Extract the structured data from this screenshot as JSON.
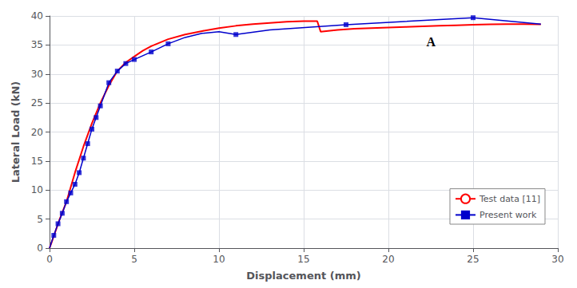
{
  "chart_data": {
    "type": "line",
    "xlabel": "Displacement (mm)",
    "ylabel": "Lateral Load (kN)",
    "xlim": [
      0,
      30
    ],
    "ylim": [
      0,
      40
    ],
    "xticks": [
      0,
      5,
      10,
      15,
      20,
      25,
      30
    ],
    "yticks": [
      0,
      5,
      10,
      15,
      20,
      25,
      30,
      35,
      40
    ],
    "grid": true,
    "legend": "lower right",
    "annotations": [
      {
        "text": "A",
        "x": 22.0,
        "y": 35.5
      }
    ],
    "series": [
      {
        "name": "Test data [11]",
        "color": "#ff0000",
        "x": [
          0.0,
          0.1,
          0.3,
          0.6,
          1.0,
          1.5,
          2.0,
          2.5,
          3.0,
          3.5,
          4.0,
          4.5,
          5.0,
          5.5,
          6.0,
          7.0,
          8.0,
          9.0,
          10.0,
          11.0,
          12.0,
          13.0,
          14.0,
          15.0,
          15.2,
          15.8,
          16.0,
          17.0,
          18.0,
          19.0,
          20.0,
          21.0,
          22.0,
          23.0,
          24.0,
          25.0,
          26.0,
          27.0,
          28.0,
          29.0
        ],
        "values": [
          0.0,
          0.8,
          2.5,
          5.0,
          8.0,
          13.0,
          17.5,
          21.5,
          25.0,
          28.0,
          30.5,
          32.0,
          33.0,
          34.0,
          34.8,
          36.0,
          36.8,
          37.4,
          37.9,
          38.3,
          38.6,
          38.8,
          39.0,
          39.1,
          39.1,
          39.1,
          37.3,
          37.6,
          37.8,
          37.9,
          38.0,
          38.1,
          38.2,
          38.3,
          38.4,
          38.5,
          38.55,
          38.6,
          38.6,
          38.55
        ]
      },
      {
        "name": "Present work",
        "color": "#0000cc",
        "marker": "square",
        "x": [
          0.0,
          0.25,
          0.5,
          0.75,
          1.0,
          1.25,
          1.5,
          1.75,
          2.0,
          2.25,
          2.5,
          2.75,
          3.0,
          3.5,
          4.0,
          4.5,
          5.0,
          6.0,
          7.0,
          8.0,
          9.0,
          10.0,
          11.0,
          13.0,
          17.5,
          25.0,
          29.0
        ],
        "values": [
          0.0,
          2.2,
          4.2,
          6.0,
          8.0,
          9.5,
          11.0,
          13.0,
          15.5,
          18.0,
          20.5,
          22.5,
          24.5,
          28.5,
          30.5,
          31.8,
          32.5,
          33.8,
          35.2,
          36.3,
          37.0,
          37.3,
          36.8,
          37.6,
          38.5,
          39.7,
          38.6
        ],
        "marker_x": [
          0.25,
          0.5,
          0.75,
          1.0,
          1.25,
          1.5,
          1.75,
          2.0,
          2.25,
          2.5,
          2.75,
          3.0,
          3.5,
          4.0,
          4.5,
          5.0,
          6.0,
          7.0,
          11.0,
          17.5,
          25.0
        ],
        "marker_values": [
          2.2,
          4.2,
          6.0,
          8.0,
          9.5,
          11.0,
          13.0,
          15.5,
          18.0,
          20.5,
          22.5,
          24.5,
          28.5,
          30.5,
          31.8,
          32.5,
          33.8,
          35.2,
          36.8,
          38.5,
          39.7
        ]
      }
    ]
  }
}
